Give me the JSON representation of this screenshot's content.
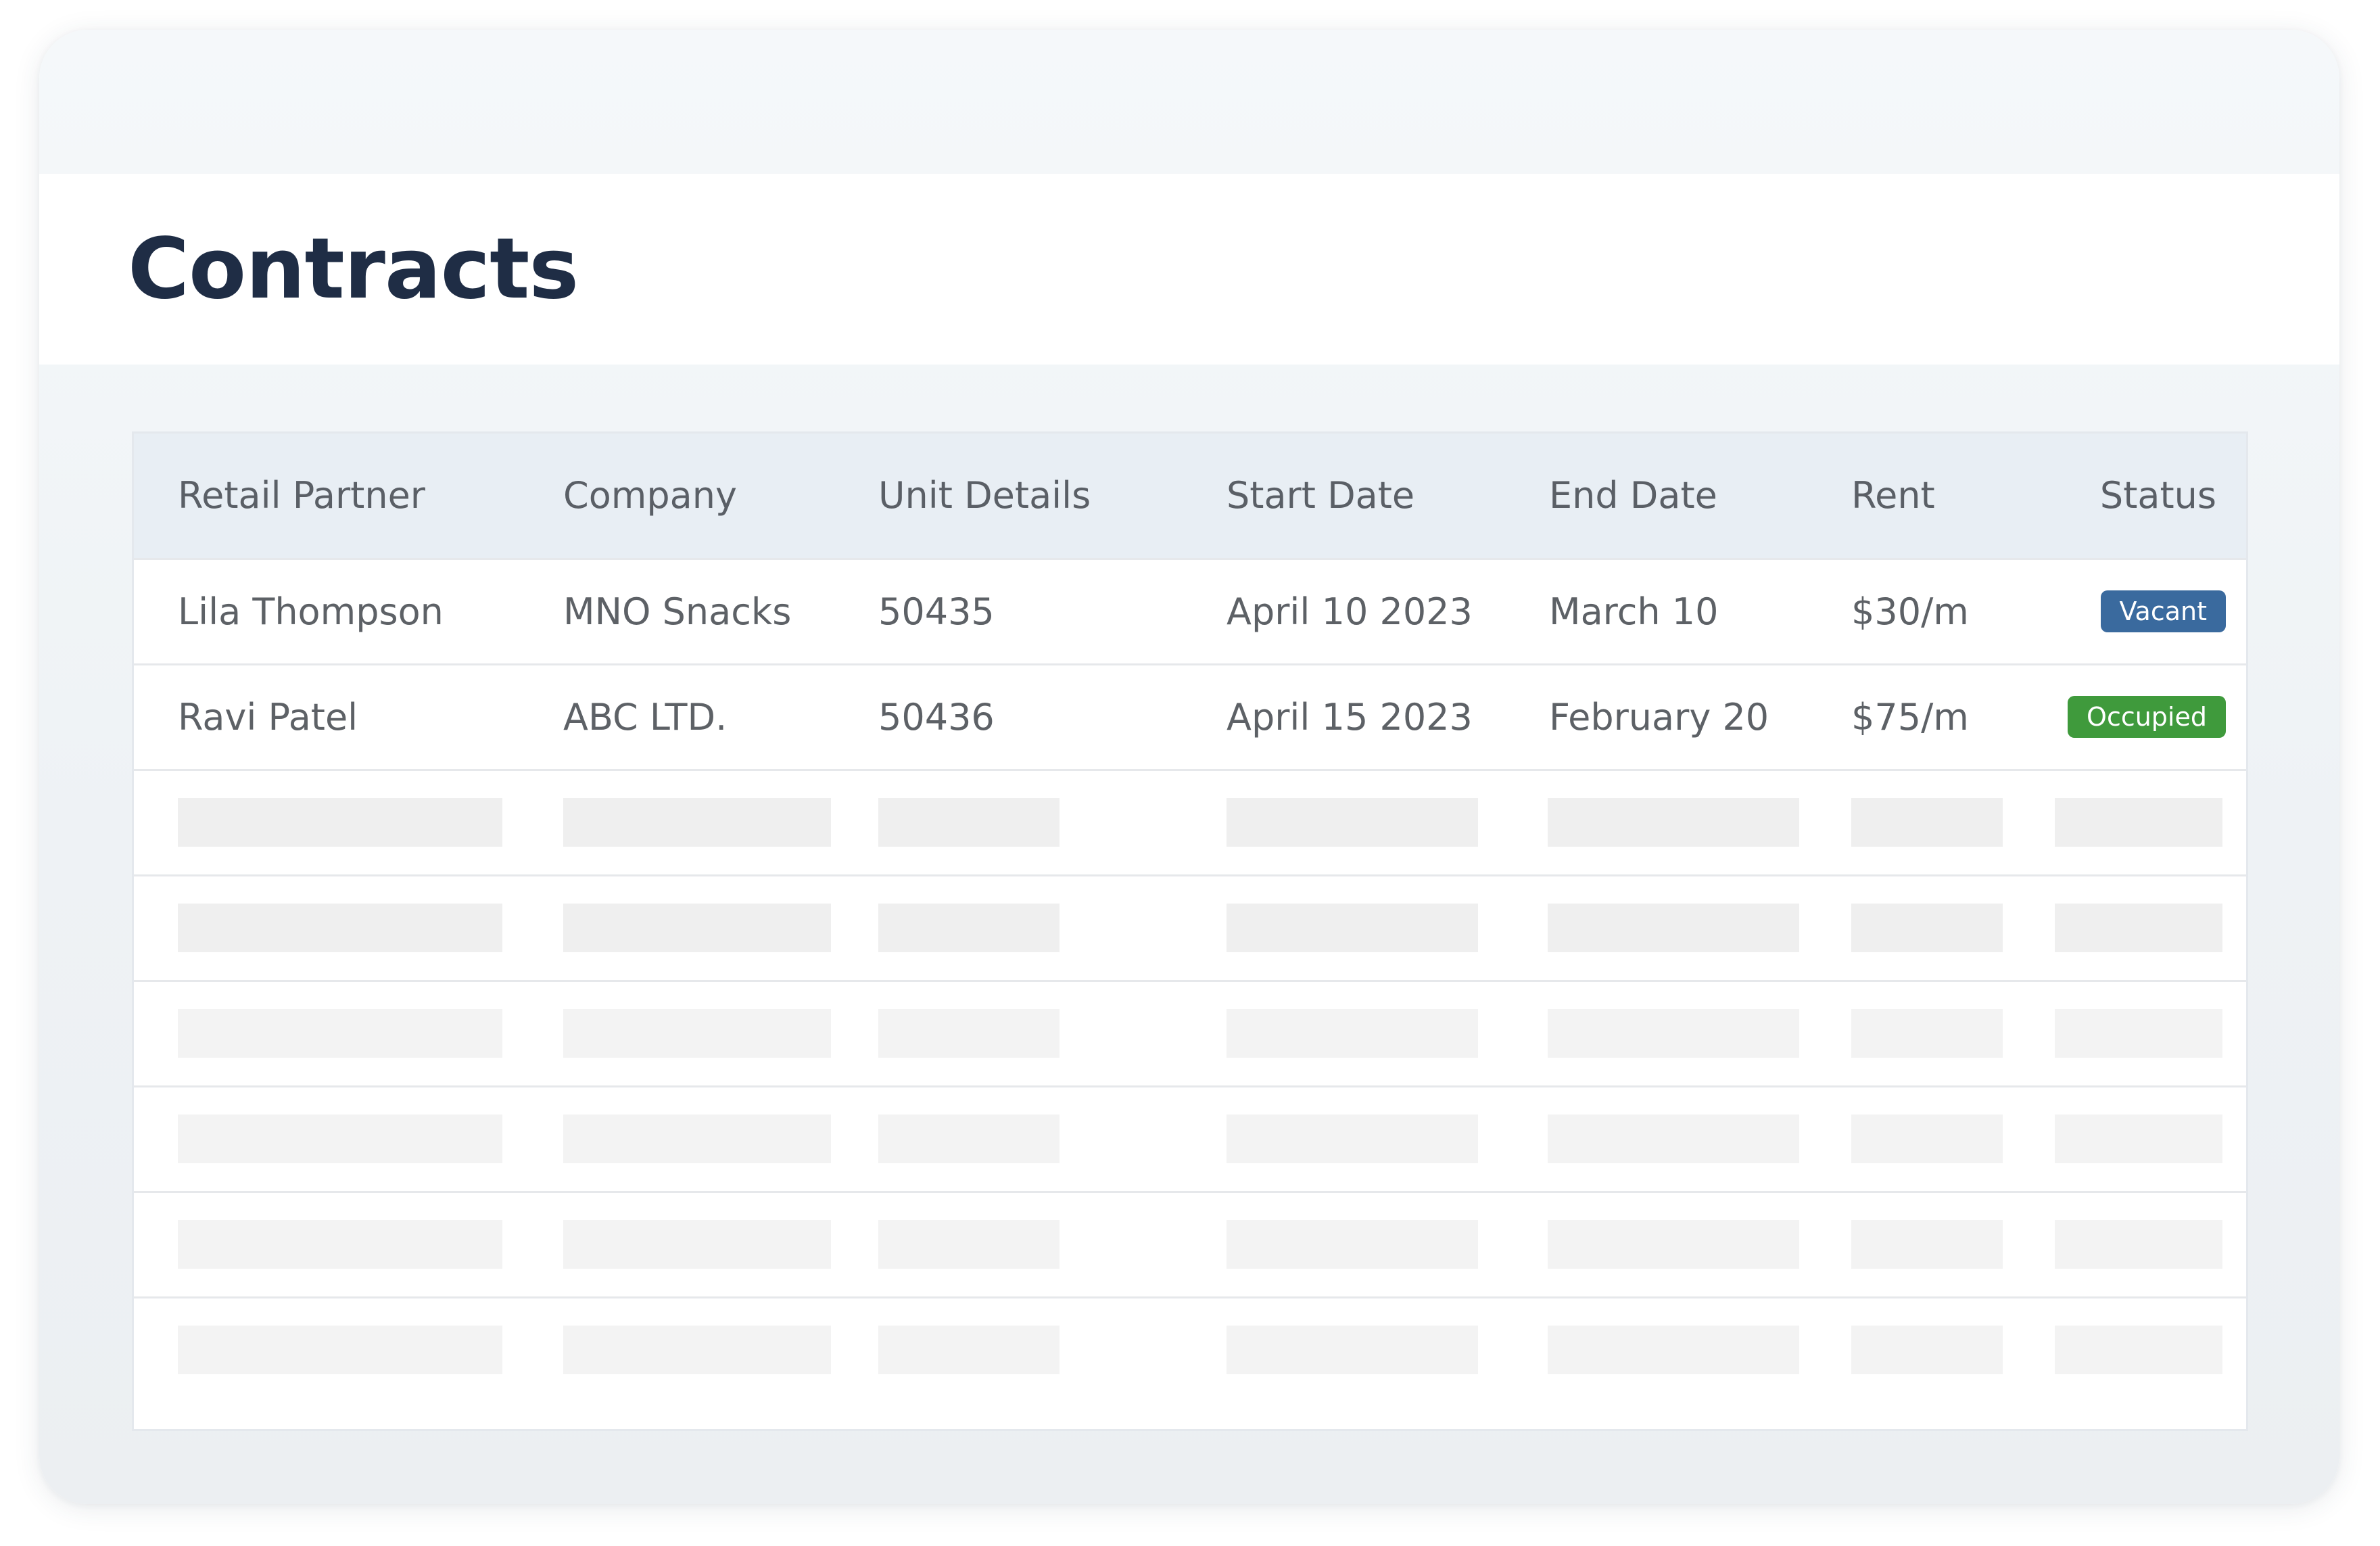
{
  "page": {
    "title": "Contracts"
  },
  "table": {
    "columns": [
      "Retail Partner",
      "Company",
      "Unit Details",
      "Start Date",
      "End Date",
      "Rent",
      "Status"
    ],
    "rows": [
      {
        "partner": "Lila Thompson",
        "company": "MNO Snacks",
        "unit": "50435",
        "start": "April 10 2023",
        "end": "March 10",
        "rent": "$30/m",
        "status": {
          "label": "Vacant",
          "color": "#3a6a9e"
        }
      },
      {
        "partner": "Ravi Patel",
        "company": "ABC LTD.",
        "unit": "50436",
        "start": "April 15 2023",
        "end": "February 20",
        "rent": "$75/m",
        "status": {
          "label": "Occupied",
          "color": "#3f9a3c"
        }
      }
    ],
    "placeholder_row_count": 6
  }
}
